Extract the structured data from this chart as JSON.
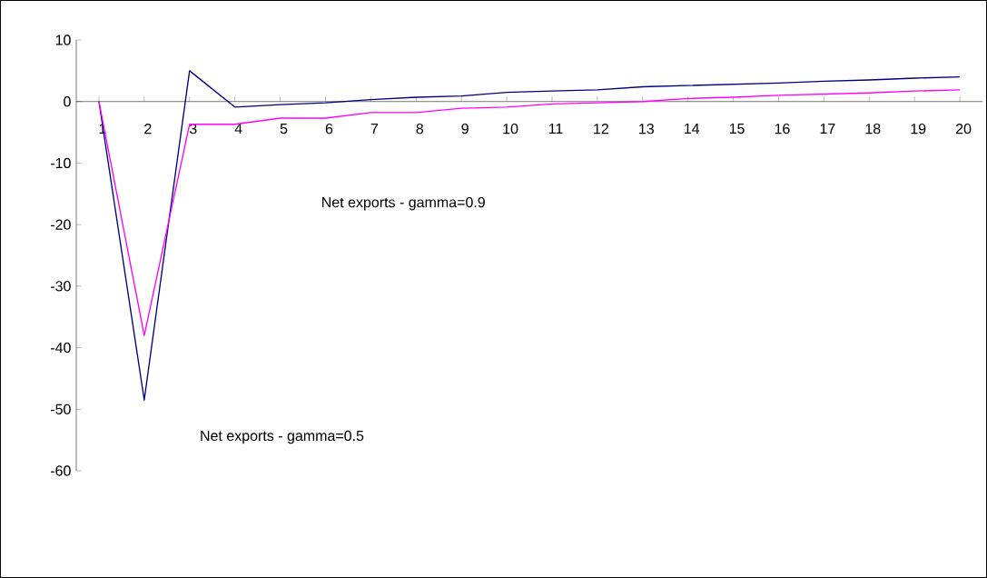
{
  "chart_data": {
    "type": "line",
    "categories": [
      "1",
      "2",
      "3",
      "4",
      "5",
      "6",
      "7",
      "8",
      "9",
      "10",
      "11",
      "12",
      "13",
      "14",
      "15",
      "16",
      "17",
      "18",
      "19",
      "20"
    ],
    "series": [
      {
        "color": "#000080",
        "values": [
          0,
          -48.5,
          5.0,
          -0.9,
          -0.5,
          -0.2,
          0.3,
          0.7,
          0.9,
          1.5,
          1.7,
          1.9,
          2.4,
          2.6,
          2.8,
          3.0,
          3.3,
          3.5,
          3.8,
          4.0
        ]
      },
      {
        "color": "#ff00ff",
        "values": [
          0,
          -38,
          -3.7,
          -3.7,
          -2.7,
          -2.7,
          -1.8,
          -1.8,
          -1.1,
          -0.9,
          -0.4,
          -0.2,
          0,
          0.5,
          0.7,
          1.0,
          1.2,
          1.4,
          1.7,
          1.9
        ]
      }
    ],
    "ylim": [
      -60,
      10
    ],
    "yticks": [
      -60,
      -50,
      -40,
      -30,
      -20,
      -10,
      0,
      10
    ],
    "annotations": [
      "Net exports - gamma=0.9",
      "Net exports - gamma=0.5"
    ],
    "grid": false,
    "marker": "none",
    "line_style": "solid"
  }
}
